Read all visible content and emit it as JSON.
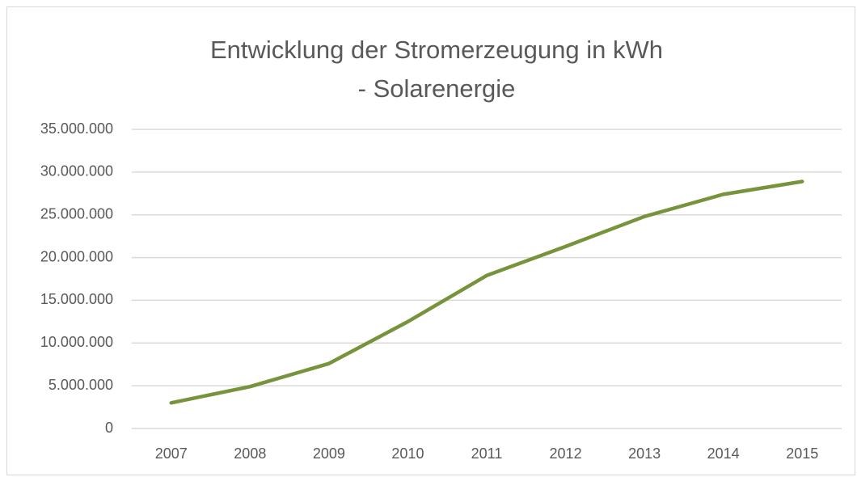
{
  "chart_data": {
    "type": "line",
    "title": "Entwicklung der Stromerzeugung in kWh - Solarenergie",
    "categories": [
      "2007",
      "2008",
      "2009",
      "2010",
      "2011",
      "2012",
      "2013",
      "2014",
      "2015"
    ],
    "values": [
      3000000,
      4900000,
      7600000,
      12500000,
      17900000,
      21300000,
      24800000,
      27400000,
      28900000
    ],
    "color": "#77933c",
    "ylim": [
      0,
      35000000
    ],
    "yticks": [
      0,
      {
        "value": 5000000,
        "label": "5.000.000"
      },
      {
        "value": 10000000,
        "label": "10.000.000"
      },
      {
        "value": 15000000,
        "label": "15.000.000"
      },
      {
        "value": 20000000,
        "label": "20.000.000"
      },
      {
        "value": 25000000,
        "label": "25.000.000"
      },
      {
        "value": 30000000,
        "label": "30.000.000"
      },
      {
        "value": 35000000,
        "label": "35.000.000"
      }
    ],
    "grid": true
  }
}
